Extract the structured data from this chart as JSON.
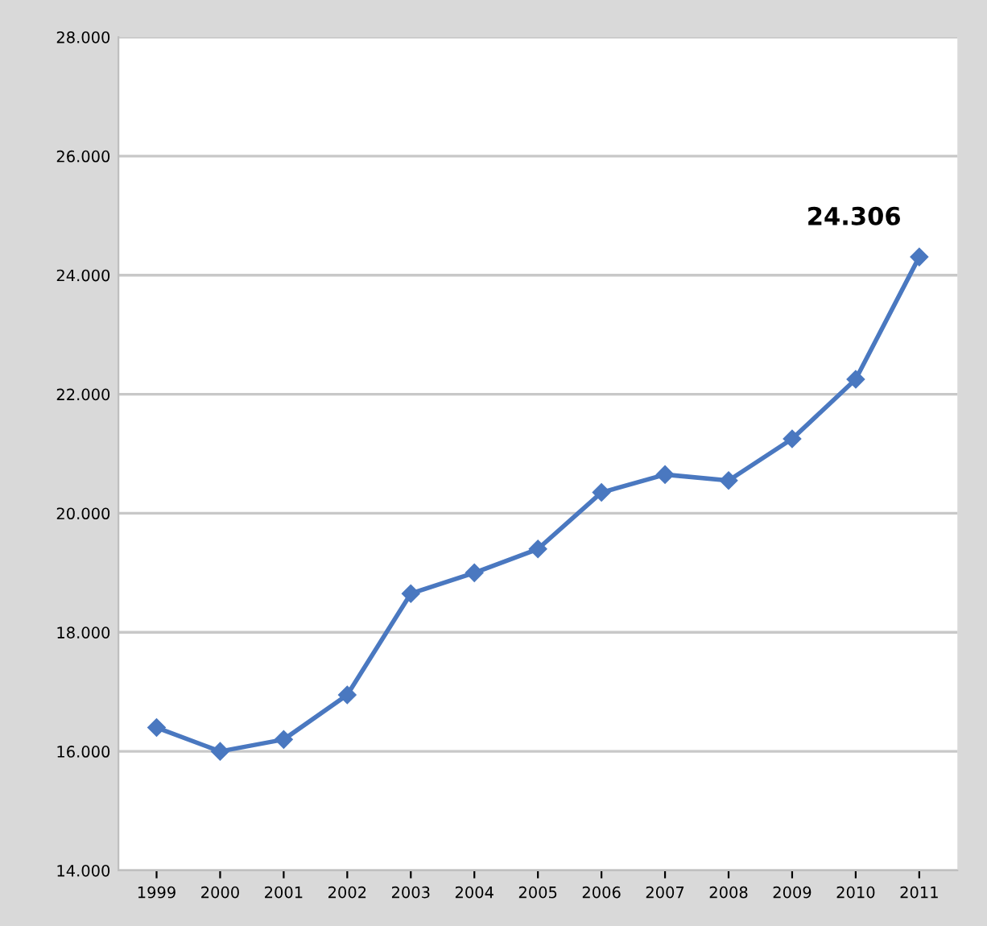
{
  "chart_data": {
    "type": "line",
    "categories": [
      "1999",
      "2000",
      "2001",
      "2002",
      "2003",
      "2004",
      "2005",
      "2006",
      "2007",
      "2008",
      "2009",
      "2010",
      "2011"
    ],
    "series": [
      {
        "color": "#4a78c0",
        "values": [
          16400,
          16000,
          16200,
          16950,
          18650,
          19000,
          19400,
          20350,
          20650,
          20550,
          21250,
          22250,
          24306
        ]
      }
    ],
    "ylim": [
      14000,
      28000
    ],
    "yticks": [
      {
        "value": 14000,
        "label": "14.000"
      },
      {
        "value": 16000,
        "label": "16.000"
      },
      {
        "value": 18000,
        "label": "18.000"
      },
      {
        "value": 20000,
        "label": "20.000"
      },
      {
        "value": 22000,
        "label": "22.000"
      },
      {
        "value": 24000,
        "label": "24.000"
      },
      {
        "value": 26000,
        "label": "26.000"
      },
      {
        "value": 28000,
        "label": "28.000"
      }
    ],
    "annotations": [
      {
        "text": "24.306",
        "x": "2011",
        "y": 24306
      }
    ],
    "grid": "y",
    "marker": "diamond",
    "line_style": "solid"
  }
}
